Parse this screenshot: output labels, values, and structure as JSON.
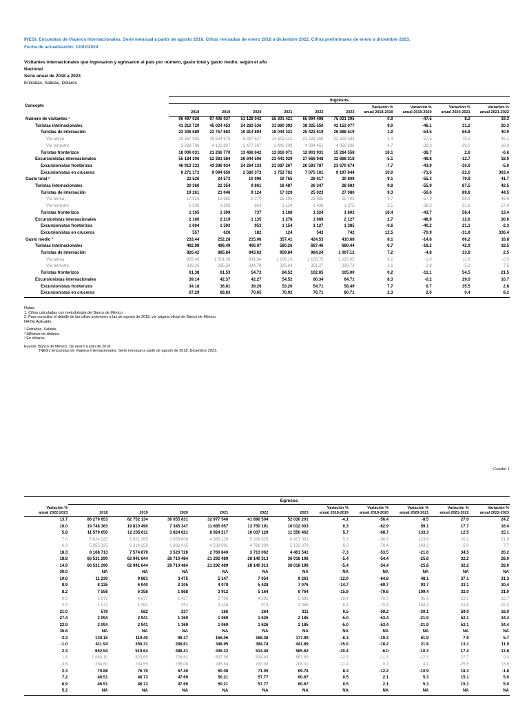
{
  "page": {
    "header_line1": "INEGI. Encuestas de Viajeros Internacionales. Serie mensual a partir de agosto 2018. Cifras revisadas de enero 2018 a diciembre 2022. Cifras preliminares de enero a diciembre 2023.",
    "header_line2": "Fecha de actualización: 12/02/2024",
    "title": "Visitantes internacionales que ingresaron y egresaron al país por número, gasto total y gasto medio, según el año",
    "region": "Nacional",
    "series": "Serie anual de 2018 a 2023",
    "units": "Entradas, Salidas, Dólares",
    "cuadro": "Cuadro 1",
    "accent_color": "#2878bd"
  },
  "table1": {
    "concept_header": "Concepto",
    "group_header": "Ingresos",
    "columns": [
      "2018",
      "2019",
      "2020",
      "2021",
      "2022",
      "2023",
      "Variación %\nanual 2018-2019",
      "Variación %\nanual 2019-2020",
      "Variación %\nanual 2020-2021",
      "Variación %\nanual 2021-2022"
    ],
    "rows": [
      {
        "label": "Número de visitantes ¹",
        "indent": 0,
        "gray": false,
        "values": [
          "96 497 026",
          "97 406 037",
          "51 128 042",
          "55 301 421",
          "65 994 498",
          "75 021 395",
          "0.9",
          "-47.5",
          "8.2",
          "19.3"
        ]
      },
      {
        "label": "Turistas internacionales",
        "indent": 1,
        "gray": false,
        "values": [
          "41 312 720",
          "45 024 453",
          "24 283 536",
          "31 860 392",
          "38 325 550",
          "42 153 077",
          "9.0",
          "-46.1",
          "31.2",
          "20.3"
        ]
      },
      {
        "label": "Turistas de internación",
        "indent": 2,
        "gray": false,
        "values": [
          "23 306 689",
          "23 757 683",
          "10 814 894",
          "18 044 321",
          "25 423 619",
          "26 888 519",
          "1.9",
          "-54.5",
          "66.8",
          "40.9"
        ]
      },
      {
        "label": "Vía aérea",
        "indent": 3,
        "gray": true,
        "values": [
          "19 367 983",
          "19 634 876",
          "8 337 627",
          "14 602 112",
          "21 329 168",
          "22 829 583",
          "1.4",
          "-57.5",
          "75.1",
          "46.1"
        ]
      },
      {
        "label": "Vía terrestre",
        "indent": 3,
        "gray": true,
        "values": [
          "3 938 706",
          "4 122 807",
          "2 477 267",
          "3 442 209",
          "4 094 451",
          "4 058 936",
          "4.7",
          "-39.9",
          "39.0",
          "18.9"
        ]
      },
      {
        "label": "Turistas fronterizos",
        "indent": 2,
        "gray": false,
        "values": [
          "18 006 031",
          "21 266 770",
          "13 468 642",
          "13 816 071",
          "12 901 931",
          "15 264 558",
          "18.1",
          "-36.7",
          "2.6",
          "-6.6"
        ]
      },
      {
        "label": "Excursionistas internacionales",
        "indent": 1,
        "gray": false,
        "values": [
          "55 184 306",
          "52 381 584",
          "26 844 506",
          "23 441 029",
          "27 668 948",
          "32 868 318",
          "-5.1",
          "-48.8",
          "-12.7",
          "18.0"
        ]
      },
      {
        "label": "Excursionistas fronterizos",
        "indent": 2,
        "gray": false,
        "values": [
          "46 913 133",
          "43 286 934",
          "24 264 133",
          "21 687 267",
          "20 593 787",
          "23 670 674",
          "-7.7",
          "-43.9",
          "-10.6",
          "-5.0"
        ]
      },
      {
        "label": "Excursionistas en cruceros",
        "indent": 2,
        "gray": false,
        "values": [
          "8 271 173",
          "9 094 650",
          "2 580 373",
          "1 753 762",
          "7 075 161",
          "9 197 644",
          "10.0",
          "-71.6",
          "-32.0",
          "303.4"
        ]
      },
      {
        "label": "Gasto total ²",
        "indent": 0,
        "gray": false,
        "values": [
          "22 526",
          "24 573",
          "10 996",
          "19 765",
          "28 017",
          "30 809",
          "9.1",
          "-55.3",
          "79.8",
          "41.7"
        ]
      },
      {
        "label": "Turistas internacionales",
        "indent": 1,
        "gray": false,
        "values": [
          "20 366",
          "22 354",
          "9 861",
          "18 487",
          "26 347",
          "28 683",
          "9.8",
          "-55.9",
          "87.5",
          "42.5"
        ]
      },
      {
        "label": "Turistas de internación",
        "indent": 2,
        "gray": false,
        "values": [
          "19 261",
          "21 046",
          "9 124",
          "17 320",
          "25 023",
          "27 080",
          "9.3",
          "-56.6",
          "89.8",
          "44.5"
        ]
      },
      {
        "label": "Vía aérea",
        "indent": 3,
        "gray": true,
        "values": [
          "17 925",
          "19 662",
          "8 270",
          "16 195",
          "23 585",
          "25 705",
          "9.7",
          "-57.9",
          "95.8",
          "45.6"
        ]
      },
      {
        "label": "Vía terrestre",
        "indent": 3,
        "gray": true,
        "values": [
          "1 336",
          "1 383",
          "854",
          "1 124",
          "1 438",
          "1 375",
          "3.5",
          "-38.3",
          "31.6",
          "27.9"
        ]
      },
      {
        "label": "Turistas fronterizos",
        "indent": 2,
        "gray": false,
        "values": [
          "1 105",
          "1 309",
          "737",
          "1 168",
          "1 324",
          "1 603",
          "18.4",
          "-43.7",
          "58.4",
          "13.4"
        ]
      },
      {
        "label": "Excursionistas internacionales",
        "indent": 1,
        "gray": false,
        "values": [
          "2 160",
          "2 219",
          "1 135",
          "1 278",
          "1 669",
          "2 127",
          "2.7",
          "-48.9",
          "12.6",
          "30.6"
        ]
      },
      {
        "label": "Excursionistas fronterizos",
        "indent": 2,
        "gray": false,
        "values": [
          "1 604",
          "1 593",
          "953",
          "1 154",
          "1 127",
          "1 385",
          "-0.6",
          "-40.2",
          "21.1",
          "-2.3"
        ]
      },
      {
        "label": "Excursionistas en cruceros",
        "indent": 2,
        "gray": false,
        "values": [
          "557",
          "626",
          "182",
          "124",
          "543",
          "742",
          "12.5",
          "-70.9",
          "-31.8",
          "336.4"
        ]
      },
      {
        "label": "Gasto medio ³",
        "indent": 0,
        "gray": false,
        "values": [
          "233.44",
          "252.28",
          "215.06",
          "357.41",
          "424.53",
          "410.68",
          "8.1",
          "-14.8",
          "66.2",
          "18.8"
        ]
      },
      {
        "label": "Turistas internacionales",
        "indent": 1,
        "gray": false,
        "values": [
          "492.98",
          "496.49",
          "406.07",
          "580.26",
          "687.46",
          "680.44",
          "0.7",
          "-18.2",
          "42.9",
          "18.5"
        ]
      },
      {
        "label": "Turistas de internación",
        "indent": 2,
        "gray": false,
        "values": [
          "826.42",
          "885.84",
          "843.63",
          "959.84",
          "984.24",
          "1 007.12",
          "7.2",
          "-4.8",
          "13.8",
          "2.5"
        ]
      },
      {
        "label": "Vía aérea",
        "indent": 3,
        "gray": true,
        "values": [
          "925.49",
          "1 001.39",
          "991.84",
          "1 109.10",
          "1 105.75",
          "1 125.95",
          "8.2",
          "-1.0",
          "11.8",
          "-0.3"
        ]
      },
      {
        "label": "Vía terrestre",
        "indent": 3,
        "gray": true,
        "values": [
          "339.26",
          "335.54",
          "344.78",
          "326.64",
          "351.27",
          "338.73",
          "-1.1",
          "2.8",
          "-5.3",
          "7.5"
        ]
      },
      {
        "label": "Turistas fronterizos",
        "indent": 2,
        "gray": false,
        "values": [
          "61.38",
          "61.53",
          "54.72",
          "84.52",
          "102.65",
          "105.00",
          "0.2",
          "-11.1",
          "54.5",
          "21.5"
        ]
      },
      {
        "label": "Excursionistas internacionales",
        "indent": 1,
        "gray": false,
        "values": [
          "39.14",
          "42.37",
          "42.27",
          "54.52",
          "60.34",
          "64.71",
          "8.3",
          "-0.2",
          "29.0",
          "10.7"
        ]
      },
      {
        "label": "Excursionistas fronterizos",
        "indent": 2,
        "gray": false,
        "values": [
          "34.18",
          "36.81",
          "39.26",
          "53.20",
          "54.71",
          "58.49",
          "7.7",
          "6.7",
          "35.5",
          "2.8"
        ]
      },
      {
        "label": "Excursionistas en cruceros",
        "indent": 2,
        "gray": false,
        "values": [
          "67.29",
          "68.83",
          "70.65",
          "70.92",
          "76.71",
          "80.71",
          "2.3",
          "2.6",
          "0.4",
          "8.2"
        ]
      }
    ]
  },
  "table2": {
    "group_header": "Egresos",
    "columns": [
      "Variación %\nanual 2022-2023",
      "2018",
      "2019",
      "2020",
      "2021",
      "2022",
      "2023",
      "Variación %\nanual 2018-2019",
      "Variación %\nanual 2019-2020",
      "Variación %\nanual 2020-2021",
      "Variación %\nanual 2021-2022",
      "Variación %\nanual 2022-2023"
    ],
    "rows": [
      {
        "gray": false,
        "values": [
          "13.7",
          "86 279 653",
          "82 752 134",
          "36 055 831",
          "32 977 546",
          "41 890 504",
          "52 030 201",
          "-4.1",
          "-56.4",
          "-8.5",
          "27.0",
          "24.2"
        ]
      },
      {
        "gray": false,
        "values": [
          "10.0",
          "19 748 363",
          "19 810 490",
          "7 345 347",
          "11 685 057",
          "13 750 191",
          "16 012 003",
          "0.3",
          "-62.9",
          "59.1",
          "17.7",
          "16.4"
        ]
      },
      {
        "gray": false,
        "values": [
          "5.8",
          "11 579 650",
          "12 235 611",
          "3 824 621",
          "8 924 217",
          "10 037 129",
          "11 550 462",
          "5.7",
          "-68.7",
          "133.3",
          "12.5",
          "15.1"
        ]
      },
      {
        "gray": true,
        "values": [
          "7.0",
          "5 624 325",
          "5 921 355",
          "1 958 606",
          "4 385 126",
          "5 268 820",
          "6 417 083",
          "5.3",
          "-66.9",
          "123.9",
          "20.2",
          "21.8"
        ]
      },
      {
        "gray": true,
        "values": [
          "-0.9",
          "5 955 325",
          "6 314 256",
          "1 866 015",
          "4 539 091",
          "4 768 309",
          "5 133 379",
          "6.0",
          "-70.4",
          "143.3",
          "5.0",
          "7.7"
        ]
      },
      {
        "gray": false,
        "values": [
          "18.3",
          "8 168 713",
          "7 574 879",
          "3 520 726",
          "2 760 840",
          "3 713 062",
          "4 461 541",
          "-7.3",
          "-53.5",
          "-21.6",
          "34.5",
          "20.2"
        ]
      },
      {
        "gray": false,
        "values": [
          "18.8",
          "66 531 290",
          "62 941 644",
          "28 710 484",
          "21 292 489",
          "28 140 313",
          "36 018 198",
          "-5.4",
          "-54.4",
          "-25.8",
          "32.2",
          "28.0"
        ]
      },
      {
        "gray": false,
        "values": [
          "14.9",
          "66 531 290",
          "62 941 644",
          "28 710 484",
          "21 292 489",
          "28 140 313",
          "36 018 198",
          "-5.4",
          "-54.4",
          "-25.8",
          "32.2",
          "28.0"
        ]
      },
      {
        "gray": false,
        "values": [
          "30.0",
          "NA",
          "NA",
          "NA",
          "NA",
          "NA",
          "NA",
          "NA",
          "NA",
          "NA",
          "NA",
          "NA"
        ]
      },
      {
        "gray": false,
        "values": [
          "10.0",
          "11 230",
          "9 881",
          "3 475",
          "5 147",
          "7 054",
          "9 261",
          "-12.0",
          "-64.8",
          "48.1",
          "37.1",
          "31.3"
        ]
      },
      {
        "gray": false,
        "values": [
          "8.9",
          "8 135",
          "6 940",
          "2 105",
          "4 078",
          "5 428",
          "7 076",
          "-14.7",
          "-69.7",
          "93.7",
          "33.1",
          "30.4"
        ]
      },
      {
        "gray": false,
        "values": [
          "8.2",
          "7 556",
          "6 358",
          "1 868",
          "3 912",
          "5 164",
          "6 764",
          "-15.9",
          "-70.6",
          "109.4",
          "32.0",
          "31.0"
        ]
      },
      {
        "gray": true,
        "values": [
          "9.0",
          "5 979",
          "4 877",
          "1 427",
          "2 796",
          "4 291",
          "5 696",
          "-18.4",
          "-70.7",
          "95.9",
          "53.5",
          "32.7"
        ]
      },
      {
        "gray": true,
        "values": [
          "-4.4",
          "1 577",
          "1 481",
          "441",
          "1 116",
          "873",
          "1 068",
          "-6.1",
          "-70.3",
          "153.3",
          "-21.8",
          "22.3"
        ]
      },
      {
        "gray": false,
        "values": [
          "21.0",
          "579",
          "582",
          "237",
          "166",
          "264",
          "311",
          "0.5",
          "-59.2",
          "-30.1",
          "59.0",
          "18.0"
        ]
      },
      {
        "gray": false,
        "values": [
          "27.4",
          "3 094",
          "2 941",
          "1 369",
          "1 069",
          "1 626",
          "2 185",
          "-5.0",
          "-53.4",
          "-21.9",
          "52.1",
          "34.4"
        ]
      },
      {
        "gray": false,
        "values": [
          "22.9",
          "3 094",
          "2 941",
          "1 369",
          "1 069",
          "1 626",
          "2 185",
          "-5.0",
          "-53.4",
          "-21.9",
          "52.1",
          "34.4"
        ]
      },
      {
        "gray": false,
        "values": [
          "36.8",
          "NA",
          "NA",
          "NA",
          "NA",
          "NA",
          "NA",
          "NA",
          "NA",
          "NA",
          "NA",
          "NA"
        ]
      },
      {
        "gray": false,
        "values": [
          "-3.3",
          "130.15",
          "119.40",
          "96.37",
          "156.06",
          "168.38",
          "177.99",
          "-8.3",
          "-19.3",
          "61.9",
          "7.9",
          "5.7"
        ]
      },
      {
        "gray": false,
        "values": [
          "-1.0",
          "411.94",
          "350.31",
          "286.61",
          "348.95",
          "394.74",
          "441.89",
          "-15.0",
          "-18.2",
          "21.8",
          "13.1",
          "11.9"
        ]
      },
      {
        "gray": false,
        "values": [
          "2.3",
          "652.54",
          "519.64",
          "488.41",
          "436.32",
          "514.49",
          "585.62",
          "-20.4",
          "-6.0",
          "-10.3",
          "17.4",
          "13.8"
        ]
      },
      {
        "gray": true,
        "values": [
          "1.8",
          "1 063.10",
          "823.65",
          "728.81",
          "637.56",
          "814.43",
          "887.69",
          "-22.5",
          "-11.5",
          "-12.5",
          "27.7",
          "9.0"
        ]
      },
      {
        "gray": true,
        "values": [
          "-3.6",
          "264.80",
          "234.55",
          "236.08",
          "245.84",
          "183.08",
          "208.01",
          "-11.4",
          "0.7",
          "4.1",
          "-25.5",
          "13.6"
        ]
      },
      {
        "gray": false,
        "values": [
          "2.3",
          "70.88",
          "76.79",
          "67.40",
          "60.08",
          "71.05",
          "69.78",
          "8.3",
          "-12.2",
          "-10.9",
          "18.3",
          "-1.8"
        ]
      },
      {
        "gray": false,
        "values": [
          "7.2",
          "46.51",
          "46.73",
          "47.69",
          "50.21",
          "57.77",
          "60.67",
          "0.5",
          "2.1",
          "5.3",
          "15.1",
          "5.0"
        ]
      },
      {
        "gray": false,
        "values": [
          "6.9",
          "46.51",
          "46.73",
          "47.69",
          "50.21",
          "57.77",
          "60.67",
          "0.5",
          "2.1",
          "5.3",
          "15.1",
          "5.0"
        ]
      },
      {
        "gray": false,
        "values": [
          "5.2",
          "NA",
          "NA",
          "NA",
          "NA",
          "NA",
          "NA",
          "NA",
          "NA",
          "NA",
          "NA",
          "NA"
        ]
      }
    ]
  },
  "notes": {
    "heading": "Notas:",
    "lines": [
      "1. Cifras calculadas con metodología del Banco de México.",
      "2. Para consultar el detalle de las cifras anteriores a las de agosto de 2018, ver página oficial de Banco de México.",
      "NA No Aplicable."
    ],
    "footnotes": [
      "¹ Entradas, Salidas.",
      "² Millones de dólares.",
      "³ En dólares."
    ],
    "source_label": "Fuente:",
    "source_line1": "Banco de México. De enero a julio de 2018.",
    "source_line2": "INEGI. Encuestas de Viajeros Internacionales. Serie mensual a partir de agosto de 2018. Diciembre 2023."
  }
}
